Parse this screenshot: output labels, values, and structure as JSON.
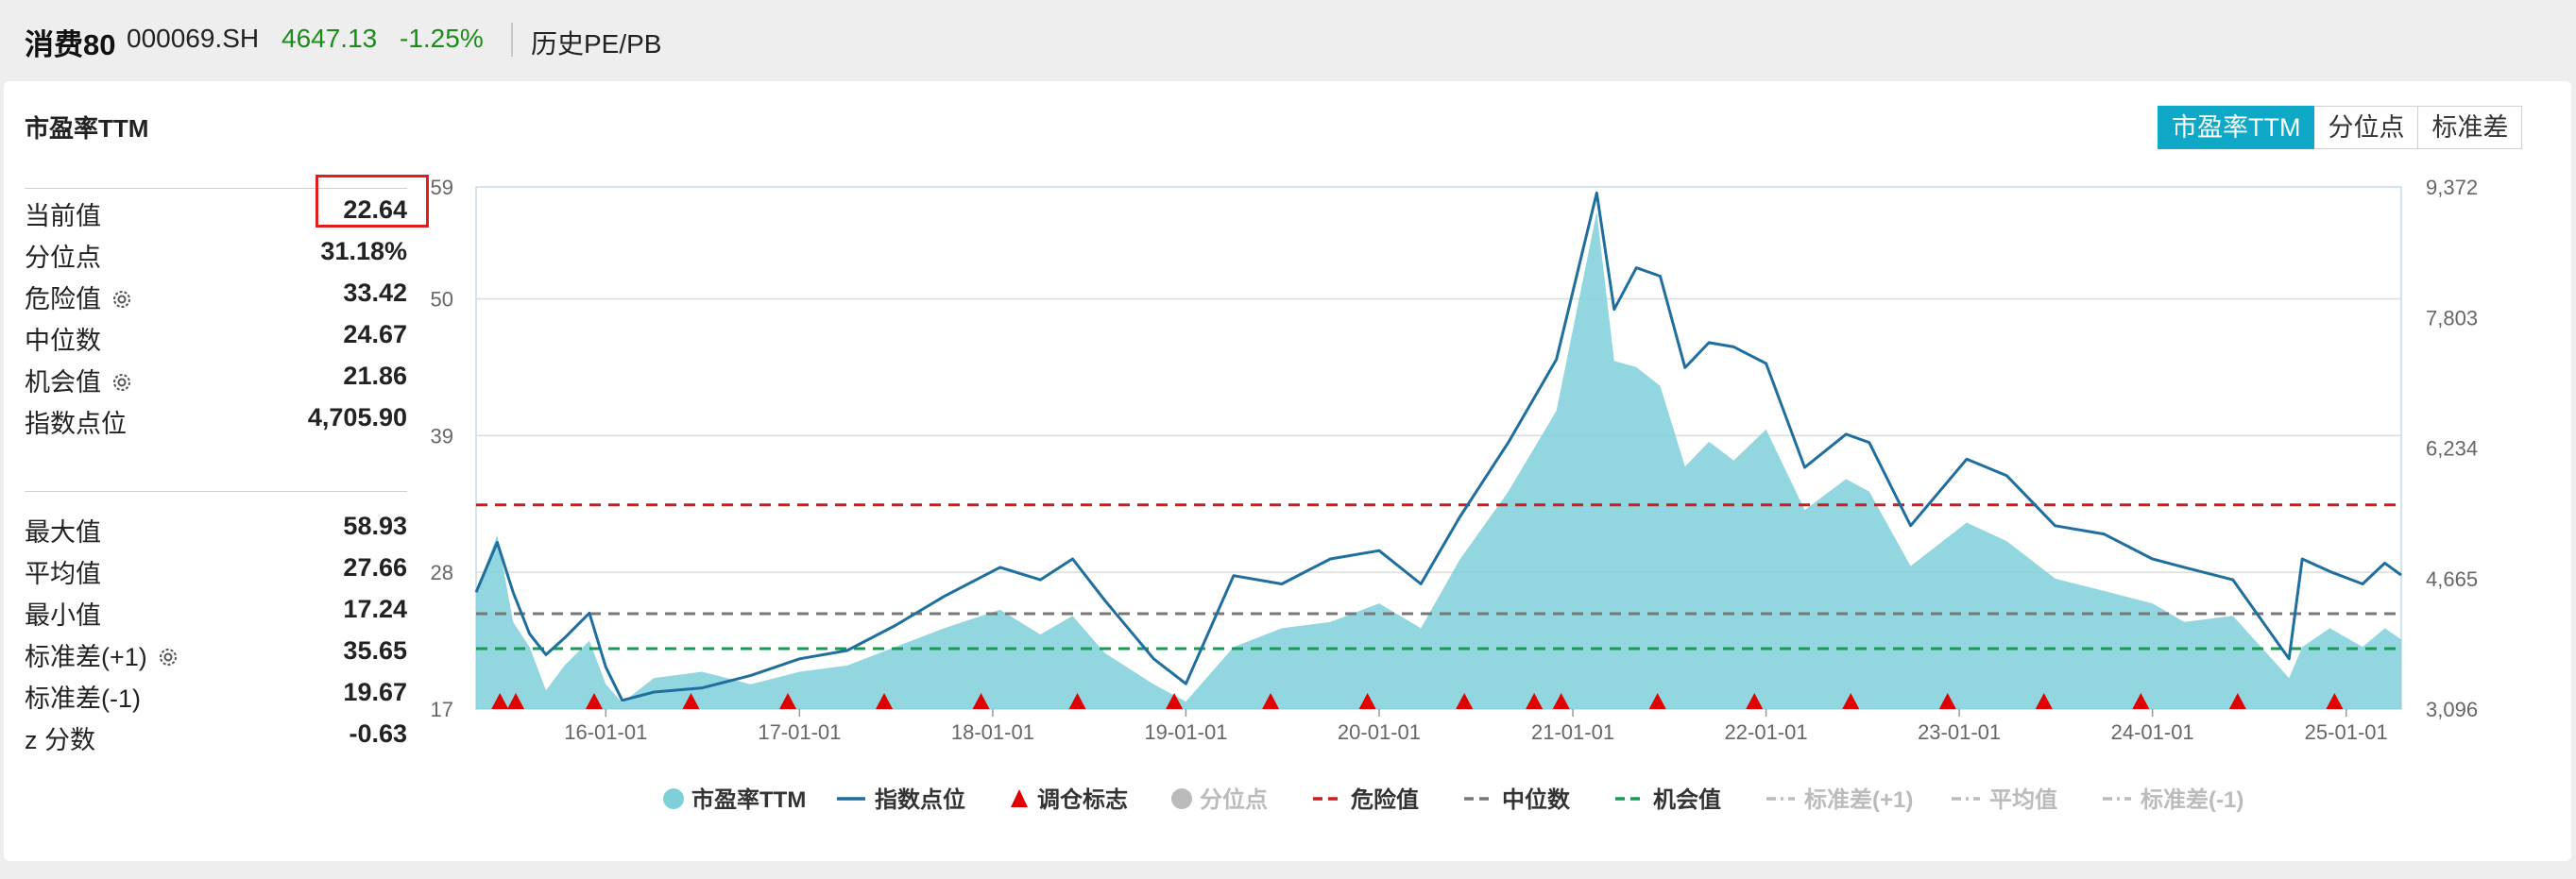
{
  "header": {
    "name": "消费80",
    "code": "000069.SH",
    "price": "4647.13",
    "change": "-1.25%",
    "tab": "历史PE/PB"
  },
  "panel": {
    "title": "市盈率TTM",
    "buttons": [
      "市盈率TTM",
      "分位点",
      "标准差"
    ],
    "active_button": 0
  },
  "stats_top": [
    {
      "label": "当前值",
      "value": "22.64"
    },
    {
      "label": "分位点",
      "value": "31.18%"
    },
    {
      "label": "危险值",
      "value": "33.42",
      "icon": "gear-icon"
    },
    {
      "label": "中位数",
      "value": "24.67"
    },
    {
      "label": "机会值",
      "value": "21.86",
      "icon": "gear-icon"
    },
    {
      "label": "指数点位",
      "value": "4,705.90"
    }
  ],
  "stats_bottom": [
    {
      "label": "最大值",
      "value": "58.93"
    },
    {
      "label": "平均值",
      "value": "27.66"
    },
    {
      "label": "最小值",
      "value": "17.24"
    },
    {
      "label": "标准差(+1)",
      "value": "35.65",
      "icon": "gear-icon"
    },
    {
      "label": "标准差(-1)",
      "value": "19.67"
    },
    {
      "label": "z 分数",
      "value": "-0.63"
    }
  ],
  "colors": {
    "pe_fill": "#7fcfd9",
    "index_line": "#1f6f9e",
    "danger": "#c81e1e",
    "median": "#777777",
    "opportunity": "#1a9955",
    "marker": "#e00000",
    "legend_disabled": "#bbbbbb",
    "grid": "#dcdcdc"
  },
  "chart_data": {
    "type": "area",
    "left_axis": {
      "ticks": [
        "17",
        "28",
        "39",
        "50",
        "59"
      ],
      "min": 17,
      "max": 59
    },
    "right_axis": {
      "ticks": [
        "3,096",
        "4,665",
        "6,234",
        "7,803",
        "9,372"
      ],
      "min": 3096,
      "max": 9372
    },
    "x_range": [
      "2015-05-01",
      "2025-04-15"
    ],
    "x_ticks": [
      {
        "date": "2016-01-01",
        "label": "16-01-01"
      },
      {
        "date": "2017-01-01",
        "label": "17-01-01"
      },
      {
        "date": "2018-01-01",
        "label": "18-01-01"
      },
      {
        "date": "2019-01-01",
        "label": "19-01-01"
      },
      {
        "date": "2020-01-01",
        "label": "20-01-01"
      },
      {
        "date": "2021-01-01",
        "label": "21-01-01"
      },
      {
        "date": "2022-01-01",
        "label": "22-01-01"
      },
      {
        "date": "2023-01-01",
        "label": "23-01-01"
      },
      {
        "date": "2024-01-01",
        "label": "24-01-01"
      },
      {
        "date": "2025-01-01",
        "label": "25-01-01"
      }
    ],
    "reference_lines": {
      "danger": 33.42,
      "median": 24.67,
      "opportunity": 21.86
    },
    "series": [
      {
        "name": "市盈率TTM",
        "type": "area",
        "axis": "left",
        "points": [
          [
            "2015-05-01",
            26.5
          ],
          [
            "2015-06-10",
            31.0
          ],
          [
            "2015-07-10",
            24.0
          ],
          [
            "2015-08-10",
            22.0
          ],
          [
            "2015-09-10",
            18.5
          ],
          [
            "2015-10-15",
            20.5
          ],
          [
            "2015-12-01",
            22.5
          ],
          [
            "2016-01-01",
            19.0
          ],
          [
            "2016-02-01",
            17.5
          ],
          [
            "2016-04-01",
            19.5
          ],
          [
            "2016-07-01",
            20.0
          ],
          [
            "2016-10-01",
            19.0
          ],
          [
            "2017-01-01",
            20.0
          ],
          [
            "2017-04-01",
            20.5
          ],
          [
            "2017-07-01",
            22.0
          ],
          [
            "2017-10-01",
            23.5
          ],
          [
            "2018-01-15",
            25.0
          ],
          [
            "2018-04-01",
            23.0
          ],
          [
            "2018-06-01",
            24.5
          ],
          [
            "2018-08-01",
            21.5
          ],
          [
            "2018-11-01",
            19.0
          ],
          [
            "2019-01-01",
            17.6
          ],
          [
            "2019-04-01",
            22.0
          ],
          [
            "2019-07-01",
            23.5
          ],
          [
            "2019-10-01",
            24.0
          ],
          [
            "2020-01-01",
            25.5
          ],
          [
            "2020-03-20",
            23.5
          ],
          [
            "2020-06-01",
            29.0
          ],
          [
            "2020-09-01",
            34.5
          ],
          [
            "2020-12-01",
            41.0
          ],
          [
            "2021-02-15",
            57.0
          ],
          [
            "2021-03-20",
            45.0
          ],
          [
            "2021-05-01",
            44.5
          ],
          [
            "2021-06-15",
            43.0
          ],
          [
            "2021-08-01",
            36.5
          ],
          [
            "2021-09-15",
            38.5
          ],
          [
            "2021-11-01",
            37.0
          ],
          [
            "2022-01-01",
            39.5
          ],
          [
            "2022-03-15",
            33.0
          ],
          [
            "2022-06-01",
            35.5
          ],
          [
            "2022-07-15",
            34.5
          ],
          [
            "2022-10-01",
            28.5
          ],
          [
            "2023-01-15",
            32.0
          ],
          [
            "2023-04-01",
            30.5
          ],
          [
            "2023-07-01",
            27.5
          ],
          [
            "2023-10-01",
            26.5
          ],
          [
            "2024-01-01",
            25.5
          ],
          [
            "2024-03-01",
            24.0
          ],
          [
            "2024-06-01",
            24.5
          ],
          [
            "2024-09-15",
            19.5
          ],
          [
            "2024-10-10",
            22.0
          ],
          [
            "2024-12-01",
            23.5
          ],
          [
            "2025-02-01",
            22.0
          ],
          [
            "2025-03-15",
            23.5
          ],
          [
            "2025-04-15",
            22.6
          ]
        ]
      },
      {
        "name": "指数点位",
        "type": "line",
        "axis": "right",
        "points": [
          [
            "2015-05-01",
            4500
          ],
          [
            "2015-06-10",
            5100
          ],
          [
            "2015-07-10",
            4500
          ],
          [
            "2015-08-10",
            4000
          ],
          [
            "2015-09-10",
            3750
          ],
          [
            "2015-10-15",
            3950
          ],
          [
            "2015-12-01",
            4250
          ],
          [
            "2016-01-01",
            3600
          ],
          [
            "2016-02-01",
            3200
          ],
          [
            "2016-04-01",
            3300
          ],
          [
            "2016-07-01",
            3350
          ],
          [
            "2016-10-01",
            3500
          ],
          [
            "2017-01-01",
            3700
          ],
          [
            "2017-04-01",
            3800
          ],
          [
            "2017-07-01",
            4100
          ],
          [
            "2017-10-01",
            4450
          ],
          [
            "2018-01-15",
            4800
          ],
          [
            "2018-04-01",
            4650
          ],
          [
            "2018-06-01",
            4900
          ],
          [
            "2018-08-01",
            4400
          ],
          [
            "2018-11-01",
            3700
          ],
          [
            "2019-01-01",
            3400
          ],
          [
            "2019-04-01",
            4700
          ],
          [
            "2019-07-01",
            4600
          ],
          [
            "2019-10-01",
            4900
          ],
          [
            "2020-01-01",
            5000
          ],
          [
            "2020-03-20",
            4600
          ],
          [
            "2020-06-01",
            5400
          ],
          [
            "2020-09-01",
            6300
          ],
          [
            "2020-12-01",
            7300
          ],
          [
            "2021-02-15",
            9300
          ],
          [
            "2021-03-20",
            7900
          ],
          [
            "2021-05-01",
            8400
          ],
          [
            "2021-06-15",
            8300
          ],
          [
            "2021-08-01",
            7200
          ],
          [
            "2021-09-15",
            7500
          ],
          [
            "2021-11-01",
            7450
          ],
          [
            "2022-01-01",
            7250
          ],
          [
            "2022-03-15",
            6000
          ],
          [
            "2022-06-01",
            6400
          ],
          [
            "2022-07-15",
            6300
          ],
          [
            "2022-10-01",
            5300
          ],
          [
            "2023-01-15",
            6100
          ],
          [
            "2023-04-01",
            5900
          ],
          [
            "2023-07-01",
            5300
          ],
          [
            "2023-10-01",
            5200
          ],
          [
            "2024-01-01",
            4900
          ],
          [
            "2024-03-01",
            4800
          ],
          [
            "2024-06-01",
            4650
          ],
          [
            "2024-09-15",
            3700
          ],
          [
            "2024-10-10",
            4900
          ],
          [
            "2024-12-01",
            4750
          ],
          [
            "2025-02-01",
            4600
          ],
          [
            "2025-03-15",
            4850
          ],
          [
            "2025-04-15",
            4705.9
          ]
        ]
      }
    ],
    "markers": {
      "name": "调仓标志",
      "dates": [
        "2015-06-15",
        "2015-07-15",
        "2015-12-10",
        "2016-06-10",
        "2016-12-10",
        "2017-06-10",
        "2017-12-10",
        "2018-06-10",
        "2018-12-10",
        "2019-06-10",
        "2019-12-10",
        "2020-06-10",
        "2020-10-20",
        "2020-12-10",
        "2021-06-10",
        "2021-12-10",
        "2022-06-10",
        "2022-12-10",
        "2023-06-10",
        "2023-12-10",
        "2024-06-10",
        "2024-12-10"
      ]
    },
    "legend": [
      {
        "name": "市盈率TTM",
        "symbol": "circle",
        "color": "#7fcfd9",
        "enabled": true
      },
      {
        "name": "指数点位",
        "symbol": "line",
        "color": "#1f6f9e",
        "enabled": true
      },
      {
        "name": "调仓标志",
        "symbol": "triangle",
        "color": "#e00000",
        "enabled": true
      },
      {
        "name": "分位点",
        "symbol": "circle",
        "color": "#bbbbbb",
        "enabled": false
      },
      {
        "name": "危险值",
        "symbol": "dash",
        "color": "#c81e1e",
        "enabled": true
      },
      {
        "name": "中位数",
        "symbol": "dash",
        "color": "#777777",
        "enabled": true
      },
      {
        "name": "机会值",
        "symbol": "dash",
        "color": "#1a9955",
        "enabled": true
      },
      {
        "name": "标准差(+1)",
        "symbol": "dashdot",
        "color": "#bbbbbb",
        "enabled": false
      },
      {
        "name": "平均值",
        "symbol": "dashdot",
        "color": "#bbbbbb",
        "enabled": false
      },
      {
        "name": "标准差(-1)",
        "symbol": "dashdot",
        "color": "#bbbbbb",
        "enabled": false
      }
    ],
    "legend_position": "bottom",
    "grid": true
  }
}
